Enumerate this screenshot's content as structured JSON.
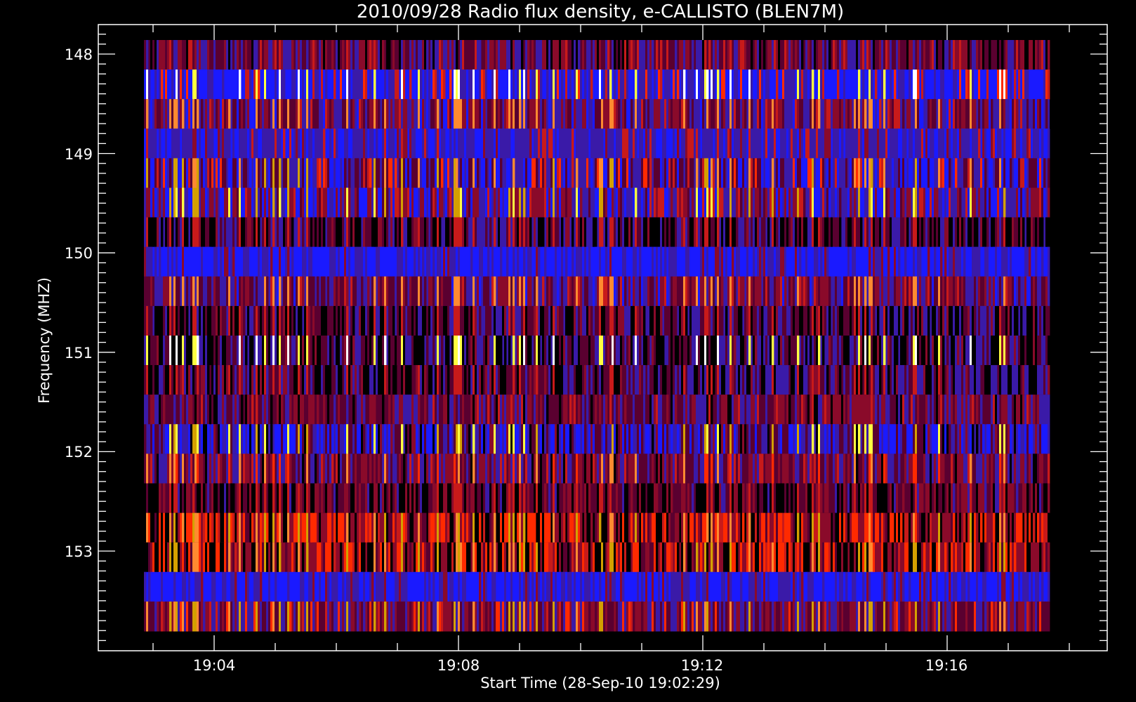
{
  "chart_data": {
    "type": "heatmap",
    "title": "2010/09/28  Radio flux density, e-CALLISTO (BLEN7M)",
    "xlabel": "Start Time (28-Sep-10 19:02:29)",
    "ylabel": "Frequency (MHZ)",
    "x_ticks": [
      "19:04",
      "19:08",
      "19:12",
      "19:16"
    ],
    "y_ticks": [
      "148",
      "149",
      "150",
      "151",
      "152",
      "153"
    ],
    "x_range_minutes": [
      19.0,
      19.5
    ],
    "y_range_mhz": [
      147.7,
      153.9
    ],
    "colors": {
      "background": "#000000",
      "axis": "#ffffff",
      "palette": [
        "#000000",
        "#5a0030",
        "#8a0a2a",
        "#3a1aa8",
        "#1a1aff",
        "#c81a1a",
        "#ff2a00",
        "#ff8a30",
        "#d4a000",
        "#ffff40",
        "#ffffff"
      ]
    },
    "frequency_bands": [
      {
        "freq_mhz": 147.9,
        "profile": "dark-red"
      },
      {
        "freq_mhz": 148.2,
        "profile": "blue-with-white-spikes"
      },
      {
        "freq_mhz": 148.5,
        "profile": "purple-red"
      },
      {
        "freq_mhz": 148.8,
        "profile": "blue-purple"
      },
      {
        "freq_mhz": 149.1,
        "profile": "purple-with-orange"
      },
      {
        "freq_mhz": 149.4,
        "profile": "blue-purple-red"
      },
      {
        "freq_mhz": 149.7,
        "profile": "purple-black"
      },
      {
        "freq_mhz": 150.0,
        "profile": "blue"
      },
      {
        "freq_mhz": 150.3,
        "profile": "purple-red"
      },
      {
        "freq_mhz": 150.7,
        "profile": "purple-black"
      },
      {
        "freq_mhz": 151.0,
        "profile": "yellow-white-pulses"
      },
      {
        "freq_mhz": 151.3,
        "profile": "dark-purple-black"
      },
      {
        "freq_mhz": 151.6,
        "profile": "dark-red"
      },
      {
        "freq_mhz": 151.9,
        "profile": "yellow-pulses"
      },
      {
        "freq_mhz": 152.2,
        "profile": "orange-pulses"
      },
      {
        "freq_mhz": 152.5,
        "profile": "dark-red-black"
      },
      {
        "freq_mhz": 152.8,
        "profile": "orange-red"
      },
      {
        "freq_mhz": 153.1,
        "profile": "red-orange"
      },
      {
        "freq_mhz": 153.4,
        "profile": "blue"
      },
      {
        "freq_mhz": 153.7,
        "profile": "red-purple"
      }
    ]
  }
}
